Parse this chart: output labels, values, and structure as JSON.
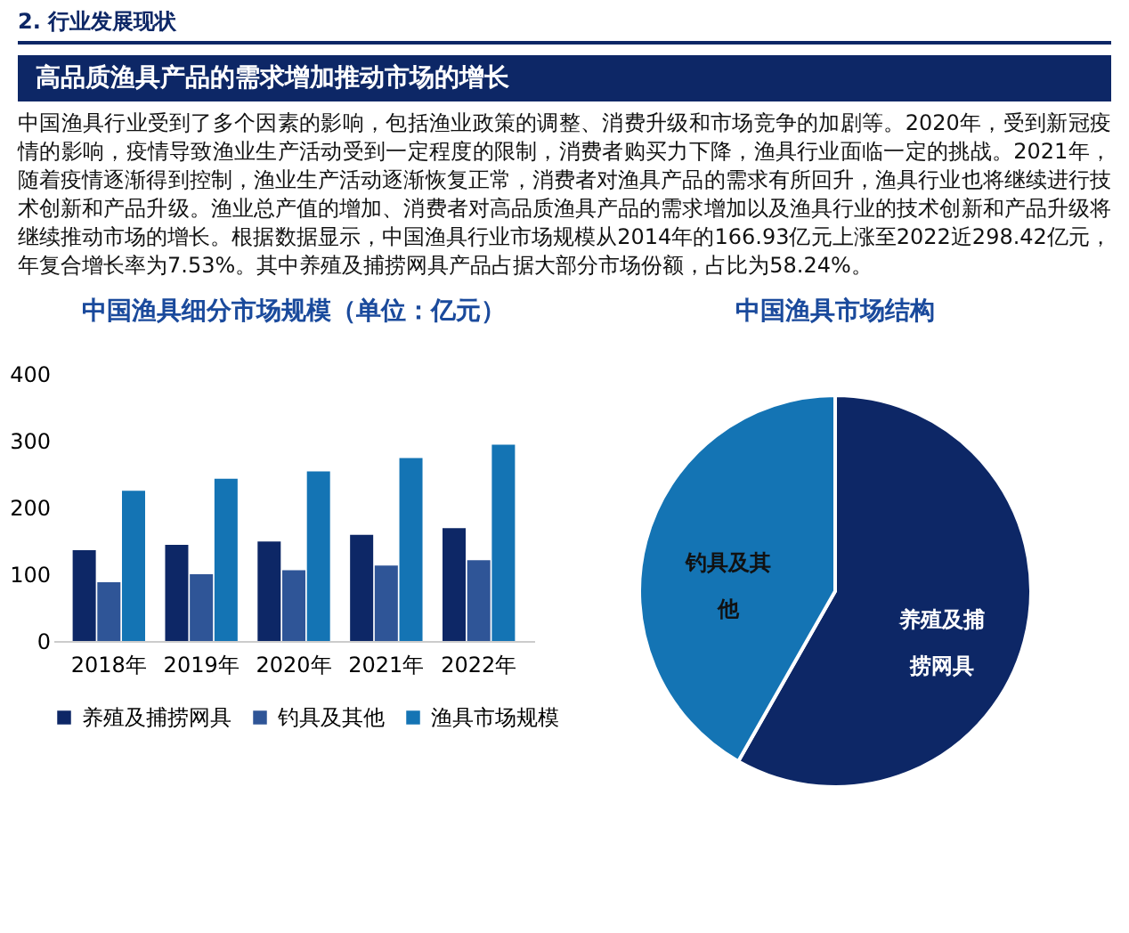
{
  "chart_data": [
    {
      "type": "other",
      "subtitle": "2. 行业发展现状",
      "title": "高品质渔具产品的需求增加推动市场的增长",
      "annotations": [
        "中国渔具行业受到了多个因素的影响，包括渔业政策的调整、消费升级和市场竞争的加剧等。2020年，受到新冠疫情的影响，疫情导致渔业生产活动受到一定程度的限制，消费者购买力下降，渔具行业面临一定的挑战。2021年，随着疫情逐渐得到控制，渔业生产活动逐渐恢复正常，消费者对渔具产品的需求有所回升，渔具行业也将继续进行技术创新和产品升级。渔业总产值的增加、消费者对高品质渔具产品的需求增加以及渔具行业的技术创新和产品升级将继续推动市场的增长。根据数据显示，中国渔具行业市场规模从2014年的166.93亿元上涨至2022近298.42亿元，年复合增长率为7.53%。其中养殖及捕捞网具产品占据大部分市场份额，占比为58.24%。"
      ]
    },
    {
      "type": "bar",
      "title": "中国渔具细分市场规模（单位：亿元）",
      "categories": [
        "2018年",
        "2019年",
        "2020年",
        "2021年",
        "2022年"
      ],
      "series": [
        {
          "name": "养殖及捕捞网具",
          "color": "#0d2766",
          "values": [
            136,
            144,
            149,
            159,
            169
          ]
        },
        {
          "name": "钓具及其他",
          "color": "#2f5597",
          "values": [
            88,
            100,
            106,
            113,
            121
          ]
        },
        {
          "name": "渔具市场规模",
          "color": "#1474b4",
          "values": [
            225,
            243,
            254,
            274,
            294
          ]
        }
      ],
      "ylim": [
        0,
        400
      ],
      "yticks": [
        0,
        100,
        200,
        300,
        400
      ],
      "legend": "bottom"
    },
    {
      "type": "pie",
      "title": "中国渔具市场结构",
      "categories": [
        "养殖及捕捞网具",
        "钓具及其他"
      ],
      "values": [
        58.24,
        41.76
      ],
      "colors": [
        "#0d2766",
        "#1474b4"
      ]
    }
  ]
}
